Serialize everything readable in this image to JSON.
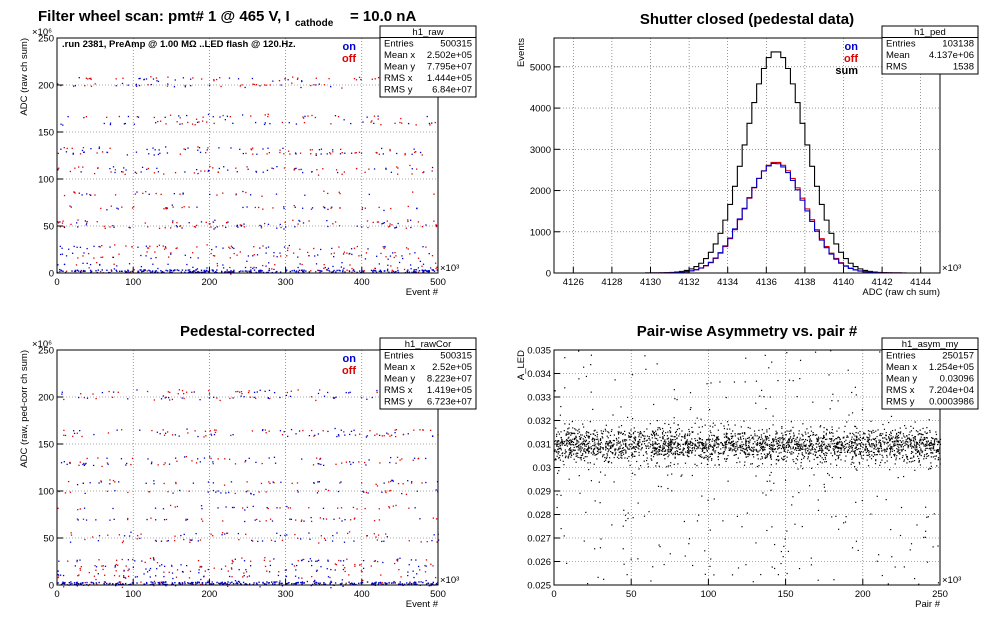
{
  "page_title": {
    "main": "Filter wheel scan: pmt#   1 @   465 V, I",
    "sub": "cathode",
    "tail": "= 10.0 nA"
  },
  "colors": {
    "on": "#0000cc",
    "off": "#dd0000",
    "sum": "#000000",
    "asym": "#000000"
  },
  "chart_data": [
    {
      "type": "scatter",
      "title": "",
      "subtitle": ".run 2381, PreAmp @ 1.00 MΩ ..LED flash @  120.Hz.",
      "xlabel": "Event #",
      "ylabel": "ADC (raw ch sum)",
      "x_exponent": "×10³",
      "y_exponent": "×10⁶",
      "xlim": [
        0,
        500
      ],
      "ylim": [
        0,
        250
      ],
      "xticks": [
        0,
        100,
        200,
        300,
        400,
        500
      ],
      "yticks": [
        0,
        50,
        100,
        150,
        200,
        250
      ],
      "grid": true,
      "legend_position": "top-right",
      "legend": [
        "on",
        "off"
      ],
      "stats": {
        "name": "h1_raw",
        "rows": [
          [
            "Entries",
            "500315"
          ],
          [
            "Mean x",
            "2.502e+05"
          ],
          [
            "Mean y",
            "7.795e+07"
          ],
          [
            "RMS x",
            "1.444e+05"
          ],
          [
            "RMS y",
            "6.84e+07"
          ]
        ]
      },
      "levels": [
        2,
        5,
        10,
        18,
        22,
        28,
        50,
        55,
        70,
        85,
        108,
        112,
        128,
        133,
        160,
        167,
        200,
        207
      ],
      "series": [
        {
          "name": "on"
        },
        {
          "name": "off"
        }
      ]
    },
    {
      "type": "line",
      "title": "Shutter closed (pedestal data)",
      "xlabel": "ADC (raw ch sum)",
      "ylabel": "Events",
      "x_exponent": "×10³",
      "xlim": [
        4125,
        4145
      ],
      "ylim": [
        0,
        5700
      ],
      "xticks": [
        4126,
        4128,
        4130,
        4132,
        4134,
        4136,
        4138,
        4140,
        4142,
        4144
      ],
      "yticks": [
        0,
        1000,
        2000,
        3000,
        4000,
        5000
      ],
      "grid": true,
      "legend_position": "top-right",
      "legend": [
        "on",
        "off",
        "sum"
      ],
      "stats": {
        "name": "h1_ped",
        "rows": [
          [
            "Entries",
            "103138"
          ],
          [
            "Mean",
            "4.137e+06"
          ],
          [
            "RMS",
            "1538"
          ]
        ]
      },
      "sum_peak": {
        "x": 4136.5,
        "y": 5380,
        "sigma": 1.55
      },
      "onoff_peak": {
        "x": 4136.5,
        "y": 2690,
        "sigma": 1.55
      },
      "series": [
        {
          "name": "sum"
        },
        {
          "name": "on"
        },
        {
          "name": "off"
        }
      ]
    },
    {
      "type": "scatter",
      "title": "Pedestal-corrected",
      "xlabel": "Event #",
      "ylabel": "ADC (raw, ped-corr ch sum)",
      "x_exponent": "×10³",
      "y_exponent": "×10⁶",
      "xlim": [
        0,
        500
      ],
      "ylim": [
        0,
        250
      ],
      "xticks": [
        0,
        100,
        200,
        300,
        400,
        500
      ],
      "yticks": [
        0,
        50,
        100,
        150,
        200,
        250
      ],
      "grid": true,
      "legend_position": "top-right",
      "legend": [
        "on",
        "off"
      ],
      "stats": {
        "name": "h1_rawCor",
        "rows": [
          [
            "Entries",
            "500315"
          ],
          [
            "Mean x",
            "2.52e+05"
          ],
          [
            "Mean y",
            "8.223e+07"
          ],
          [
            "RMS x",
            "1.419e+05"
          ],
          [
            "RMS y",
            "6.723e+07"
          ]
        ]
      },
      "levels": [
        1,
        4,
        10,
        16,
        21,
        27,
        48,
        54,
        70,
        83,
        100,
        110,
        130,
        135,
        160,
        165,
        200,
        206
      ],
      "series": [
        {
          "name": "on"
        },
        {
          "name": "off"
        }
      ]
    },
    {
      "type": "scatter",
      "title": "Pair-wise Asymmetry vs. pair #",
      "xlabel": "Pair #",
      "ylabel": "A_LED",
      "x_exponent": "×10³",
      "xlim": [
        0,
        250
      ],
      "ylim": [
        0.025,
        0.035
      ],
      "xticks": [
        0,
        50,
        100,
        150,
        200,
        250
      ],
      "yticks": [
        0.025,
        0.026,
        0.027,
        0.028,
        0.029,
        0.03,
        0.031,
        0.032,
        0.033,
        0.034,
        0.035
      ],
      "grid": true,
      "stats": {
        "name": "h1_asym_my",
        "rows": [
          [
            "Entries",
            "250157"
          ],
          [
            "Mean x",
            "1.254e+05"
          ],
          [
            "Mean y",
            "0.03096"
          ],
          [
            "RMS x",
            "7.204e+04"
          ],
          [
            "RMS y",
            "0.0003986"
          ]
        ]
      },
      "band_center": 0.03096,
      "band_halfwidth": 0.0004,
      "series": [
        {
          "name": "asym"
        }
      ]
    }
  ]
}
